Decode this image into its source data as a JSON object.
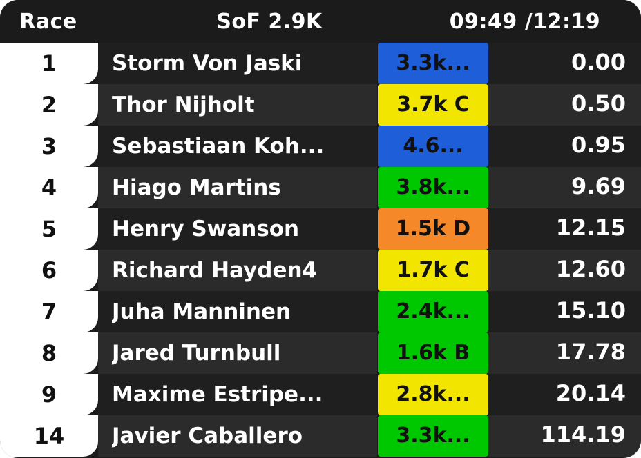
{
  "header": {
    "race_label": "Race",
    "sof_label": "SoF 2.9K",
    "time_label": "09:49 /12:19"
  },
  "colors": {
    "panel_bg": "#1b1b1b",
    "row_odd": "#1f1f1f",
    "row_even": "#2b2b2b",
    "license_blue": "#1e5fd9",
    "license_yellow": "#f2e600",
    "license_green": "#00c800",
    "license_orange": "#f5892a"
  },
  "rows": [
    {
      "position": "1",
      "name": "Storm Von Jaski",
      "rating": "3.3k...",
      "license_color": "#1e5fd9",
      "gap": "0.00"
    },
    {
      "position": "2",
      "name": "Thor Nijholt",
      "rating": "3.7k C",
      "license_color": "#f2e600",
      "gap": "0.50"
    },
    {
      "position": "3",
      "name": "Sebastiaan Koh...",
      "rating": "4.6...",
      "license_color": "#1e5fd9",
      "gap": "0.95"
    },
    {
      "position": "4",
      "name": "Hiago Martins",
      "rating": "3.8k...",
      "license_color": "#00c800",
      "gap": "9.69"
    },
    {
      "position": "5",
      "name": "Henry Swanson",
      "rating": "1.5k D",
      "license_color": "#f5892a",
      "gap": "12.15"
    },
    {
      "position": "6",
      "name": "Richard Hayden4",
      "rating": "1.7k C",
      "license_color": "#f2e600",
      "gap": "12.60"
    },
    {
      "position": "7",
      "name": "Juha Manninen",
      "rating": "2.4k...",
      "license_color": "#00c800",
      "gap": "15.10"
    },
    {
      "position": "8",
      "name": "Jared Turnbull",
      "rating": "1.6k B",
      "license_color": "#00c800",
      "gap": "17.78"
    },
    {
      "position": "9",
      "name": "Maxime Estripe...",
      "rating": "2.8k...",
      "license_color": "#f2e600",
      "gap": "20.14"
    },
    {
      "position": "14",
      "name": "Javier Caballero",
      "rating": "3.3k...",
      "license_color": "#00c800",
      "gap": "114.19"
    }
  ]
}
